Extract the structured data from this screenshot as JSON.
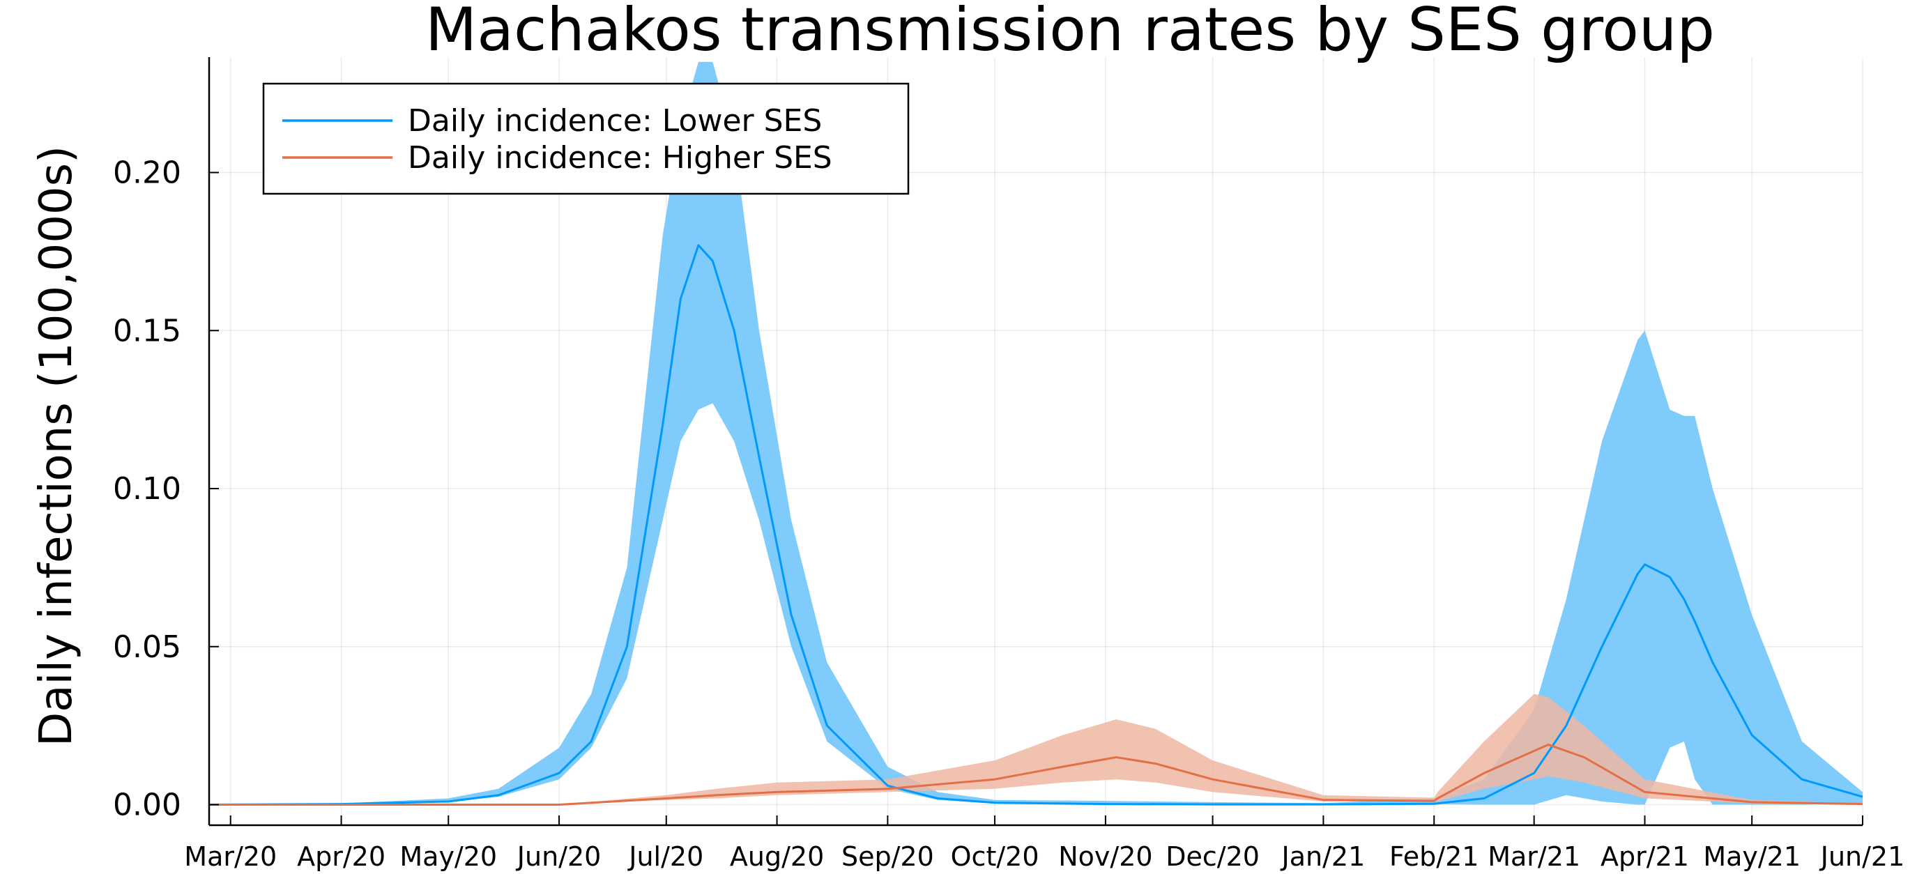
{
  "chart_data": {
    "type": "area",
    "title": "Machakos transmission rates by SES group",
    "xlabel": "",
    "ylabel": "Daily infections (100,000s)",
    "x_type": "date",
    "xlim": [
      "2020-02-24",
      "2021-06-01"
    ],
    "ylim": [
      -0.0065,
      0.2365
    ],
    "grid": true,
    "legend_position": "top-left",
    "x_ticks": [
      "2020-03-01",
      "2020-04-01",
      "2020-05-01",
      "2020-06-01",
      "2020-07-01",
      "2020-08-01",
      "2020-09-01",
      "2020-10-01",
      "2020-11-01",
      "2020-12-01",
      "2021-01-01",
      "2021-02-01",
      "2021-03-01",
      "2021-04-01",
      "2021-05-01",
      "2021-06-01"
    ],
    "x_tick_labels": [
      "Mar/20",
      "Apr/20",
      "May/20",
      "Jun/20",
      "Jul/20",
      "Aug/20",
      "Sep/20",
      "Oct/20",
      "Nov/20",
      "Dec/20",
      "Jan/21",
      "Feb/21",
      "Mar/21",
      "Apr/21",
      "May/21",
      "Jun/21"
    ],
    "y_ticks": [
      0.0,
      0.05,
      0.1,
      0.15,
      0.2
    ],
    "y_tick_labels": [
      "0.00",
      "0.05",
      "0.10",
      "0.15",
      "0.20"
    ],
    "series": [
      {
        "name": "Daily incidence: Lower SES",
        "color": "#009AFA",
        "band_color": "#7FCBFB",
        "points": [
          [
            "2020-02-24",
            0.0,
            0.0,
            0.0
          ],
          [
            "2020-04-01",
            0.0002,
            0.0001,
            0.0004
          ],
          [
            "2020-05-01",
            0.001,
            0.0008,
            0.002
          ],
          [
            "2020-05-15",
            0.003,
            0.0025,
            0.005
          ],
          [
            "2020-06-01",
            0.01,
            0.008,
            0.018
          ],
          [
            "2020-06-10",
            0.02,
            0.018,
            0.035
          ],
          [
            "2020-06-20",
            0.05,
            0.04,
            0.075
          ],
          [
            "2020-06-30",
            0.12,
            0.09,
            0.18
          ],
          [
            "2020-07-05",
            0.16,
            0.115,
            0.215
          ],
          [
            "2020-07-10",
            0.177,
            0.125,
            0.235
          ],
          [
            "2020-07-14",
            0.172,
            0.127,
            0.235
          ],
          [
            "2020-07-20",
            0.15,
            0.115,
            0.21
          ],
          [
            "2020-07-27",
            0.11,
            0.09,
            0.15
          ],
          [
            "2020-08-05",
            0.06,
            0.05,
            0.09
          ],
          [
            "2020-08-15",
            0.025,
            0.02,
            0.045
          ],
          [
            "2020-09-01",
            0.006,
            0.005,
            0.012
          ],
          [
            "2020-09-15",
            0.002,
            0.0015,
            0.004
          ],
          [
            "2020-10-01",
            0.0006,
            0.0004,
            0.0015
          ],
          [
            "2020-11-01",
            0.0002,
            0.0001,
            0.0012
          ],
          [
            "2020-12-01",
            0.0001,
            0.0,
            0.0008
          ],
          [
            "2021-01-01",
            0.0001,
            0.0,
            0.0005
          ],
          [
            "2021-02-01",
            0.0003,
            0.0002,
            0.002
          ],
          [
            "2021-02-15",
            0.002,
            0.0,
            0.008
          ],
          [
            "2021-03-01",
            0.01,
            0.0,
            0.03
          ],
          [
            "2021-03-10",
            0.025,
            0.003,
            0.065
          ],
          [
            "2021-03-20",
            0.05,
            0.001,
            0.115
          ],
          [
            "2021-03-30",
            0.073,
            0.0,
            0.147
          ],
          [
            "2021-04-01",
            0.076,
            0.0,
            0.15
          ],
          [
            "2021-04-08",
            0.072,
            0.018,
            0.125
          ],
          [
            "2021-04-12",
            0.065,
            0.02,
            0.123
          ],
          [
            "2021-04-15",
            0.058,
            0.008,
            0.123
          ],
          [
            "2021-04-20",
            0.045,
            0.0,
            0.1
          ],
          [
            "2021-05-01",
            0.022,
            0.0,
            0.06
          ],
          [
            "2021-05-15",
            0.008,
            0.0,
            0.02
          ],
          [
            "2021-06-01",
            0.0025,
            0.0005,
            0.004
          ]
        ]
      },
      {
        "name": "Daily incidence: Higher SES",
        "color": "#E26F46",
        "band_color": "#F0B7A2",
        "points": [
          [
            "2020-02-24",
            0.0,
            0.0,
            0.0
          ],
          [
            "2020-06-01",
            0.0,
            0.0,
            0.0
          ],
          [
            "2020-07-01",
            0.002,
            0.0015,
            0.003
          ],
          [
            "2020-07-15",
            0.003,
            0.002,
            0.005
          ],
          [
            "2020-08-01",
            0.004,
            0.003,
            0.007
          ],
          [
            "2020-09-01",
            0.005,
            0.004,
            0.008
          ],
          [
            "2020-10-01",
            0.008,
            0.005,
            0.014
          ],
          [
            "2020-10-20",
            0.012,
            0.007,
            0.022
          ],
          [
            "2020-11-04",
            0.015,
            0.008,
            0.027
          ],
          [
            "2020-11-15",
            0.013,
            0.007,
            0.024
          ],
          [
            "2020-12-01",
            0.008,
            0.004,
            0.014
          ],
          [
            "2021-01-01",
            0.0015,
            0.001,
            0.003
          ],
          [
            "2021-02-01",
            0.0012,
            0.001,
            0.0022
          ],
          [
            "2021-02-02",
            0.002,
            0.001,
            0.004
          ],
          [
            "2021-02-15",
            0.01,
            0.005,
            0.02
          ],
          [
            "2021-03-01",
            0.017,
            0.008,
            0.035
          ],
          [
            "2021-03-05",
            0.019,
            0.009,
            0.034
          ],
          [
            "2021-03-15",
            0.015,
            0.007,
            0.025
          ],
          [
            "2021-04-01",
            0.004,
            0.002,
            0.008
          ],
          [
            "2021-05-01",
            0.0008,
            0.0004,
            0.0015
          ],
          [
            "2021-06-01",
            0.0002,
            0.0001,
            0.0004
          ]
        ]
      }
    ]
  }
}
